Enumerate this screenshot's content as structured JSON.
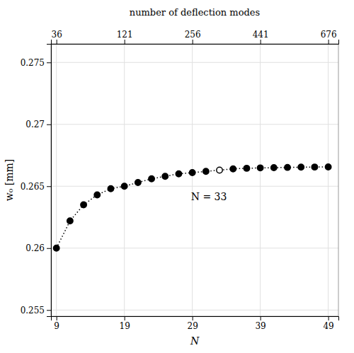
{
  "chart_data": {
    "type": "line",
    "x": [
      9,
      11,
      13,
      15,
      17,
      19,
      21,
      23,
      25,
      27,
      29,
      31,
      33,
      35,
      37,
      39,
      41,
      43,
      45,
      47,
      49
    ],
    "series": [
      {
        "values": [
          0.26,
          0.2622,
          0.2635,
          0.2643,
          0.2648,
          0.265,
          0.2653,
          0.2656,
          0.2658,
          0.266,
          0.2661,
          0.2662,
          0.2663,
          0.2664,
          0.26645,
          0.26648,
          0.2665,
          0.26652,
          0.26654,
          0.26655,
          0.26656
        ],
        "color": "black",
        "colors": [
          "black",
          "black",
          "black",
          "black",
          "black",
          "black",
          "black",
          "black",
          "black",
          "black",
          "black",
          "black",
          "white",
          "black",
          "black",
          "black",
          "black",
          "black",
          "black",
          "black",
          "black"
        ],
        "marker": "circle",
        "line_style": "dotted"
      }
    ],
    "xlabel": "N",
    "ylabel": "w₀ [mm]",
    "x2label": "number of deflection modes",
    "xlim": [
      8.2,
      50.5
    ],
    "xticks": [
      9,
      19,
      29,
      39,
      49
    ],
    "x2lim": [
      8.2,
      50.5
    ],
    "x2ticks": [
      {
        "value": 9,
        "label": "36"
      },
      {
        "value": 19,
        "label": "121"
      },
      {
        "value": 29,
        "label": "256"
      },
      {
        "value": 39,
        "label": "441"
      },
      {
        "value": 49,
        "label": "676"
      }
    ],
    "ylim": [
      0.2545,
      0.2765
    ],
    "yticks": [
      0.255,
      0.26,
      0.265,
      0.27,
      0.275
    ],
    "grid": true,
    "annotations": [
      {
        "text": "N = 33",
        "x": 28.8,
        "y": 0.26385
      }
    ]
  }
}
